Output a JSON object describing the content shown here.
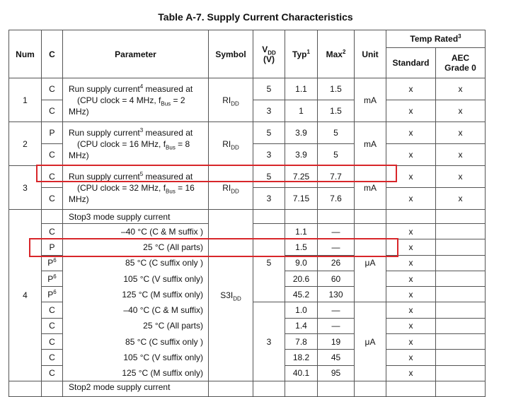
{
  "title": "Table A-7.  Supply Current Characteristics",
  "header": {
    "num": "Num",
    "c": "C",
    "parameter": "Parameter",
    "symbol": "Symbol",
    "vdd": {
      "text": "V",
      "sub": "DD",
      "unit": "(V)"
    },
    "typ": {
      "text": "Typ",
      "sup": "1"
    },
    "max": {
      "text": "Max",
      "sup": "2"
    },
    "unit": "Unit",
    "temp_rated": {
      "text": "Temp Rated",
      "sup": "3"
    },
    "standard": "Standard",
    "aec": "AEC Grade 0"
  },
  "groups": [
    {
      "num": "1",
      "parameter": {
        "a": "Run supply current",
        "sup": "4",
        "b": " measured at",
        "c": "(CPU clock = 4 MHz, f",
        "sub": "Bus",
        "d": " = 2",
        "e": "MHz)"
      },
      "symbol": {
        "text": "RI",
        "sub": "DD"
      },
      "unit": "mA",
      "rows": [
        {
          "c": "C",
          "vdd": "5",
          "typ": "1.1",
          "max": "1.5",
          "standard": "x",
          "aec": "x"
        },
        {
          "c": "C",
          "vdd": "3",
          "typ": "1",
          "max": "1.5",
          "standard": "x",
          "aec": "x"
        }
      ]
    },
    {
      "num": "2",
      "parameter": {
        "a": "Run supply current",
        "sup": "3",
        "b": " measured at",
        "c": "(CPU clock = 16 MHz, f",
        "sub": "Bus",
        "d": " = 8",
        "e": "MHz)"
      },
      "symbol": {
        "text": "RI",
        "sub": "DD"
      },
      "unit": "mA",
      "rows": [
        {
          "c": "P",
          "vdd": "5",
          "typ": "3.9",
          "max": "5",
          "standard": "x",
          "aec": "x"
        },
        {
          "c": "C",
          "vdd": "3",
          "typ": "3.9",
          "max": "5",
          "standard": "x",
          "aec": "x"
        }
      ]
    },
    {
      "num": "3",
      "parameter": {
        "a": "Run supply current",
        "sup": "5",
        "b": " measured at",
        "c": "(CPU clock = 32 MHz, f",
        "sub": "Bus",
        "d": " = 16",
        "e": "MHz)"
      },
      "symbol": {
        "text": "RI",
        "sub": "DD"
      },
      "unit": "mA",
      "rows": [
        {
          "c": "C",
          "vdd": "5",
          "typ": "7.25",
          "max": "7.7",
          "standard": "x",
          "aec": "x"
        },
        {
          "c": "C",
          "vdd": "3",
          "typ": "7.15",
          "max": "7.6",
          "standard": "x",
          "aec": "x"
        }
      ]
    }
  ],
  "stop3": {
    "num": "4",
    "parameter": "Stop3 mode supply current",
    "symbol": {
      "text": "S3I",
      "sub": "DD"
    },
    "blocks": [
      {
        "vdd": "5",
        "unit": "μA",
        "rows": [
          {
            "c": "C",
            "condition": "–40 °C (C & M suffix )",
            "typ": "1.1",
            "max": "—",
            "standard": "x"
          },
          {
            "c": "P",
            "condition": "25 °C (All parts)",
            "typ": "1.5",
            "max": "—",
            "standard": "x"
          },
          {
            "c": {
              "text": "P",
              "sup": "6"
            },
            "condition": "85 °C (C suffix only )",
            "typ": "9.0",
            "max": "26",
            "standard": "x"
          },
          {
            "c": {
              "text": "P",
              "sup": "6"
            },
            "condition": "105 °C (V suffix only)",
            "typ": "20.6",
            "max": "60",
            "standard": "x"
          },
          {
            "c": {
              "text": "P",
              "sup": "6"
            },
            "condition": "125 °C (M suffix only)",
            "typ": "45.2",
            "max": "130",
            "standard": "x"
          }
        ]
      },
      {
        "vdd": "3",
        "unit": "μA",
        "rows": [
          {
            "c": "C",
            "condition": "–40 °C (C & M suffix)",
            "typ": "1.0",
            "max": "—",
            "standard": "x"
          },
          {
            "c": "C",
            "condition": "25 °C (All parts)",
            "typ": "1.4",
            "max": "—",
            "standard": "x"
          },
          {
            "c": "C",
            "condition": "85 °C (C suffix only )",
            "typ": "7.8",
            "max": "19",
            "standard": "x"
          },
          {
            "c": "C",
            "condition": "105 °C (V suffix only)",
            "typ": "18.2",
            "max": "45",
            "standard": "x"
          },
          {
            "c": "C",
            "condition": "125 °C (M suffix only)",
            "typ": "40.1",
            "max": "95",
            "standard": "x"
          }
        ]
      }
    ]
  },
  "stop2": {
    "parameter": "Stop2 mode supply current"
  }
}
